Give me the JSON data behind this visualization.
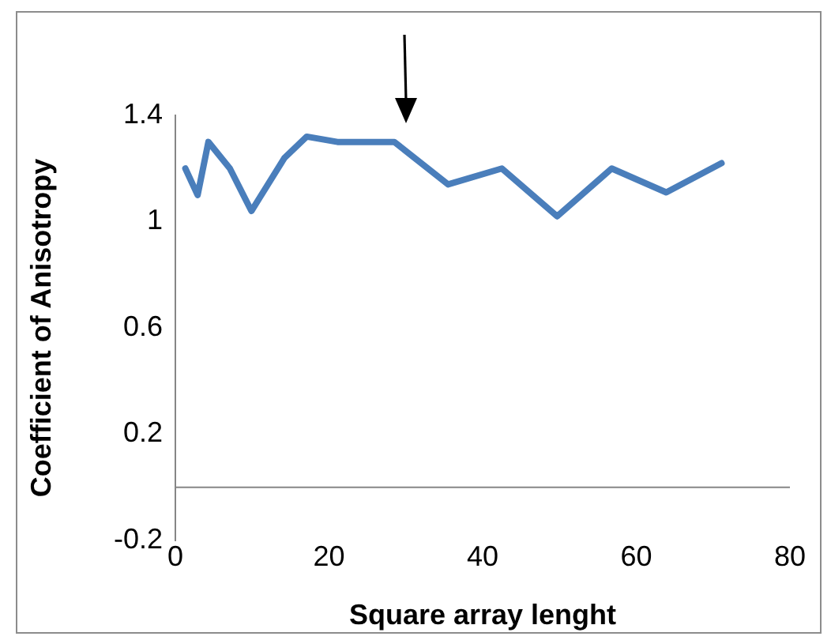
{
  "chart_data": {
    "type": "line",
    "xlabel": "Square array lenght",
    "ylabel": "Coefficient of Anisotropy",
    "x": [
      1.3,
      2.9,
      4.3,
      7.1,
      9.9,
      14.2,
      17.1,
      21.1,
      28.5,
      35.5,
      42.5,
      49.7,
      56.8,
      63.9,
      71.1
    ],
    "values": [
      1.2,
      1.1,
      1.3,
      1.2,
      1.04,
      1.24,
      1.32,
      1.3,
      1.3,
      1.14,
      1.2,
      1.02,
      1.2,
      1.11,
      1.22
    ],
    "color": "#4a7ebb",
    "xlim": [
      0,
      80
    ],
    "xticks": [
      0,
      20,
      40,
      60,
      80
    ],
    "ylim": [
      -0.2,
      1.4
    ],
    "yticks": [
      -0.2,
      0.2,
      0.6,
      1,
      1.4
    ],
    "grid": false,
    "marker": "none",
    "line_style": "solid"
  }
}
